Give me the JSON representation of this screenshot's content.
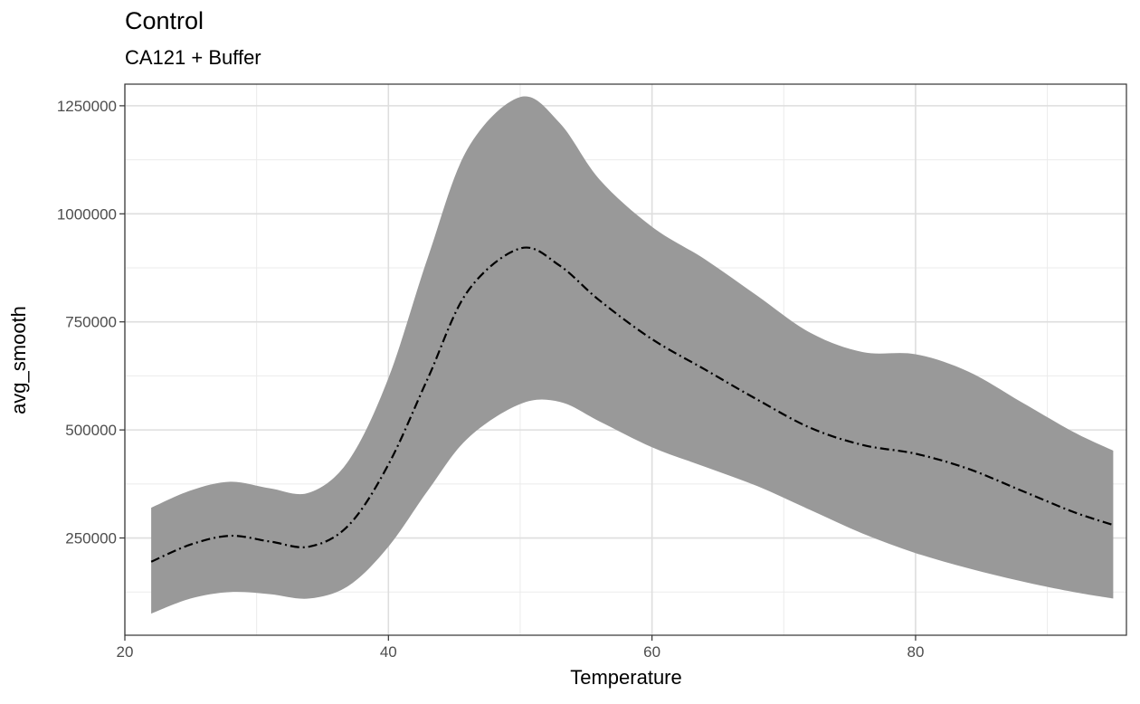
{
  "chart_data": {
    "type": "area",
    "title": "Control",
    "subtitle": "CA121 + Buffer",
    "xlabel": "Temperature",
    "ylabel": "avg_smooth",
    "xlim": [
      20,
      96
    ],
    "ylim": [
      25000,
      1300000
    ],
    "x_ticks": [
      20,
      40,
      60,
      80
    ],
    "y_ticks": [
      250000,
      500000,
      750000,
      1000000,
      1250000
    ],
    "grid": true,
    "series": [
      {
        "style": "dot-dash line with grey confidence band",
        "colors": {
          "line": "#000000",
          "band": "#999999"
        },
        "x": [
          22,
          25,
          28,
          31,
          34,
          37,
          40,
          43,
          46,
          50,
          53,
          56,
          60,
          64,
          68,
          72,
          76,
          80,
          84,
          88,
          92,
          95
        ],
        "y": [
          195000,
          235000,
          255000,
          242000,
          230000,
          280000,
          420000,
          620000,
          820000,
          920000,
          880000,
          800000,
          710000,
          640000,
          570000,
          505000,
          465000,
          445000,
          410000,
          360000,
          310000,
          280000
        ],
        "lower": [
          75000,
          110000,
          125000,
          120000,
          110000,
          140000,
          230000,
          360000,
          480000,
          560000,
          565000,
          520000,
          460000,
          415000,
          370000,
          315000,
          260000,
          215000,
          180000,
          150000,
          125000,
          110000
        ],
        "upper": [
          320000,
          360000,
          380000,
          365000,
          355000,
          430000,
          620000,
          900000,
          1150000,
          1270000,
          1210000,
          1080000,
          970000,
          895000,
          810000,
          725000,
          680000,
          675000,
          635000,
          565000,
          495000,
          452000
        ]
      }
    ]
  }
}
